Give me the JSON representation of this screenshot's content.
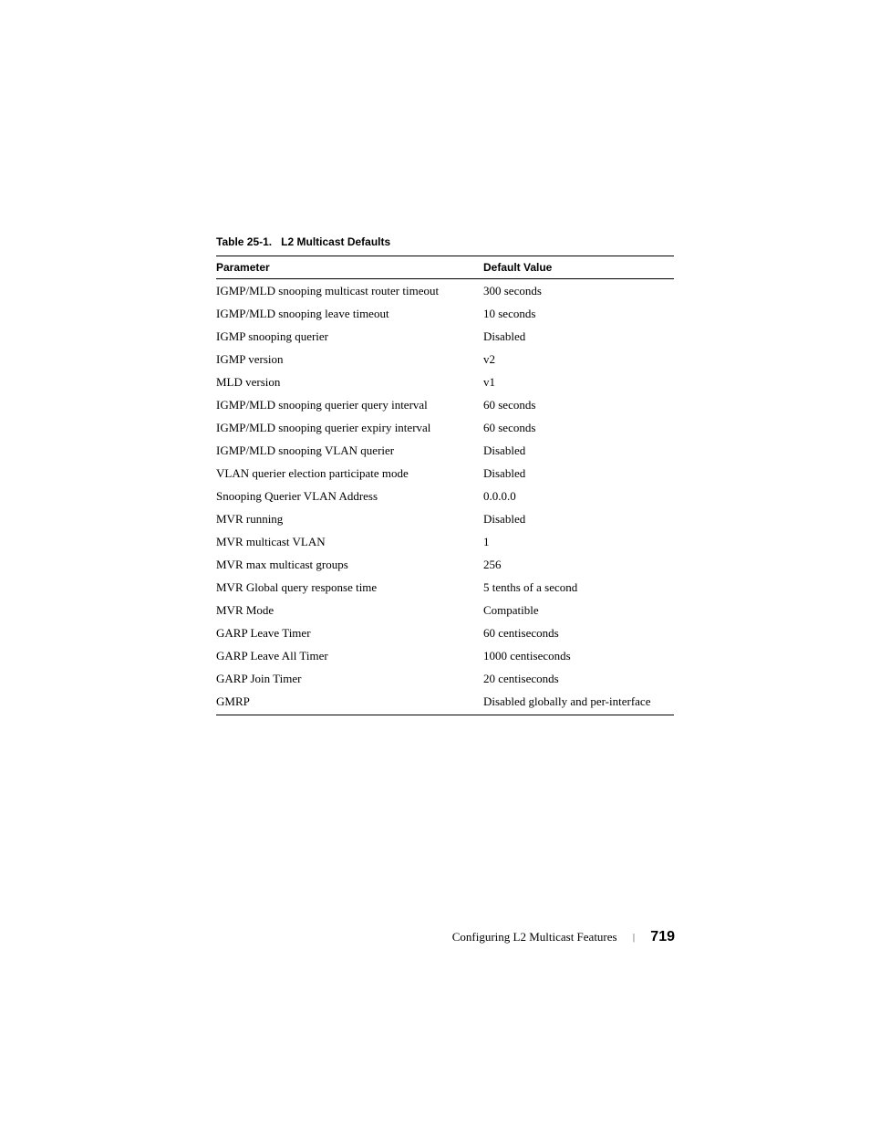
{
  "table": {
    "caption_prefix": "Table 25-1.",
    "caption_title": "L2 Multicast Defaults",
    "header": {
      "param": "Parameter",
      "value": "Default Value"
    },
    "rows": [
      {
        "param": "IGMP/MLD snooping multicast router timeout",
        "value": "300 seconds"
      },
      {
        "param": "IGMP/MLD snooping leave timeout",
        "value": "10 seconds"
      },
      {
        "param": "IGMP snooping querier",
        "value": "Disabled"
      },
      {
        "param": "IGMP version",
        "value": "v2"
      },
      {
        "param": "MLD version",
        "value": "v1"
      },
      {
        "param": "IGMP/MLD snooping querier query interval",
        "value": "60 seconds"
      },
      {
        "param": "IGMP/MLD snooping querier expiry interval",
        "value": "60 seconds"
      },
      {
        "param": "IGMP/MLD snooping VLAN querier",
        "value": "Disabled"
      },
      {
        "param": "VLAN querier election participate mode",
        "value": "Disabled"
      },
      {
        "param": "Snooping Querier VLAN Address",
        "value": "0.0.0.0"
      },
      {
        "param": "MVR running",
        "value": "Disabled"
      },
      {
        "param": "MVR multicast VLAN",
        "value": "1"
      },
      {
        "param": "MVR max multicast groups",
        "value": "256"
      },
      {
        "param": "MVR Global query response time",
        "value": "5 tenths of a second"
      },
      {
        "param": "MVR Mode",
        "value": "Compatible"
      },
      {
        "param": "GARP Leave Timer",
        "value": "60 centiseconds"
      },
      {
        "param": "GARP Leave All Timer",
        "value": "1000 centiseconds"
      },
      {
        "param": "GARP Join Timer",
        "value": "20 centiseconds"
      },
      {
        "param": "GMRP",
        "value": "Disabled globally and per-interface"
      }
    ]
  },
  "footer": {
    "title": "Configuring L2 Multicast Features",
    "separator": "|",
    "page": "719"
  }
}
